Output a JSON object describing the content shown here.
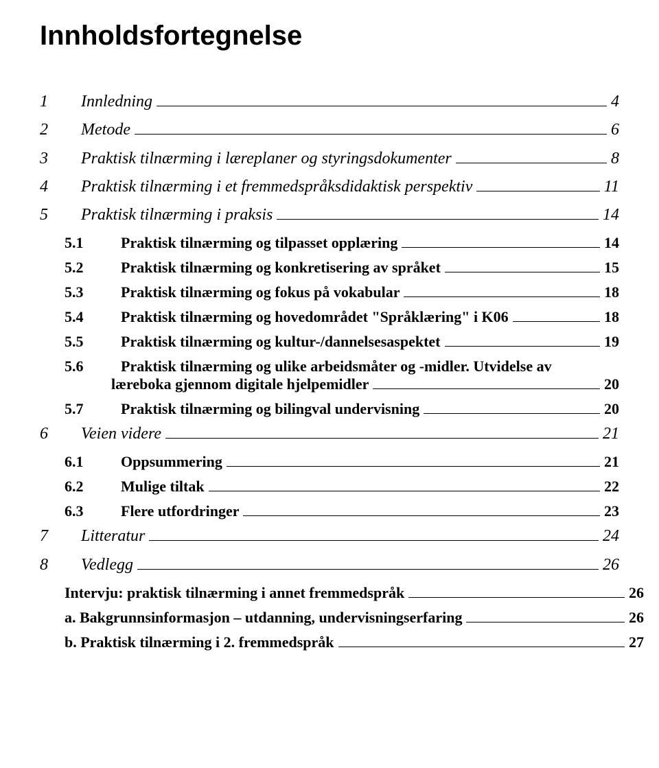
{
  "title": "Innholdsfortegnelse",
  "entries": [
    {
      "level": 1,
      "num": "1",
      "label": "Innledning",
      "page": "4"
    },
    {
      "level": 1,
      "num": "2",
      "label": "Metode",
      "page": "6"
    },
    {
      "level": 1,
      "num": "3",
      "label": "Praktisk tilnærming i læreplaner og styringsdokumenter",
      "page": "8"
    },
    {
      "level": 1,
      "num": "4",
      "label": "Praktisk tilnærming i et fremmedspråksdidaktisk perspektiv",
      "page": "11"
    },
    {
      "level": 1,
      "num": "5",
      "label": "Praktisk tilnærming i praksis",
      "page": "14"
    },
    {
      "level": 2,
      "num": "5.1",
      "label": "Praktisk tilnærming og tilpasset opplæring",
      "page": "14"
    },
    {
      "level": 2,
      "num": "5.2",
      "label": "Praktisk tilnærming og konkretisering av språket",
      "page": "15"
    },
    {
      "level": 2,
      "num": "5.3",
      "label": "Praktisk tilnærming og fokus på vokabular",
      "page": "18"
    },
    {
      "level": 2,
      "num": "5.4",
      "label": "Praktisk tilnærming og hovedområdet \"Språklæring\" i K06",
      "page": "18"
    },
    {
      "level": 2,
      "num": "5.5",
      "label": "Praktisk tilnærming og kultur-/dannelsesaspektet",
      "page": "19"
    },
    {
      "level": 2,
      "num": "5.6",
      "label_line1": "Praktisk tilnærming og ulike arbeidsmåter og -midler. Utvidelse av",
      "label_line2": "læreboka gjennom digitale hjelpemidler",
      "page": "20",
      "multiline": true
    },
    {
      "level": 2,
      "num": "5.7",
      "label": "Praktisk tilnærming og bilingval undervisning",
      "page": "20"
    },
    {
      "level": 1,
      "num": "6",
      "label": "Veien videre",
      "page": "21"
    },
    {
      "level": 2,
      "num": "6.1",
      "label": "Oppsummering",
      "page": "21"
    },
    {
      "level": 2,
      "num": "6.2",
      "label": "Mulige tiltak",
      "page": "22"
    },
    {
      "level": 2,
      "num": "6.3",
      "label": "Flere utfordringer",
      "page": "23"
    },
    {
      "level": 1,
      "num": "7",
      "label": "Litteratur",
      "page": "24"
    },
    {
      "level": 1,
      "num": "8",
      "label": "Vedlegg",
      "page": "26"
    },
    {
      "level": 2,
      "num": "",
      "label": "Intervju: praktisk tilnærming i annet fremmedspråk",
      "page": "26",
      "unnumbered": true
    },
    {
      "level": 2,
      "num": "",
      "label": "a. Bakgrunnsinformasjon – utdanning, undervisningserfaring",
      "page": "26",
      "unnumbered": true
    },
    {
      "level": 2,
      "num": "",
      "label": "b. Praktisk tilnærming i 2. fremmedspråk",
      "page": "27",
      "unnumbered": true
    }
  ]
}
